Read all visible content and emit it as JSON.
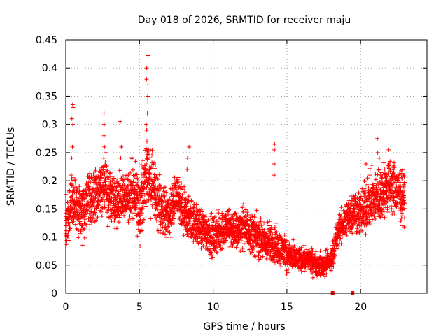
{
  "chart_data": {
    "type": "scatter",
    "title": "Day 018 of 2026, SRMTID for receiver maju",
    "xlabel": "GPS time / hours",
    "ylabel": "SRMTID / TECUs",
    "xlim": [
      0,
      24.5
    ],
    "ylim": [
      0,
      0.45
    ],
    "grid": true,
    "marker": "plus",
    "color": "#ff0000",
    "x_ticks": [
      0,
      5,
      10,
      15,
      20
    ],
    "x_tick_labels": [
      "0",
      "5",
      "10",
      "15",
      "20"
    ],
    "y_ticks": [
      0,
      0.05,
      0.1,
      0.15,
      0.2,
      0.25,
      0.3,
      0.35,
      0.4,
      0.45
    ],
    "y_tick_labels": [
      "0",
      "0.05",
      "0.1",
      "0.15",
      "0.2",
      "0.25",
      "0.3",
      "0.35",
      "0.4",
      "0.45"
    ],
    "zero_markers_x": [
      18.1,
      19.45
    ],
    "trend": {
      "x": [
        0,
        0.5,
        1,
        1.5,
        2,
        2.5,
        3,
        3.5,
        4,
        4.5,
        5,
        5.5,
        6,
        6.5,
        7,
        7.5,
        8,
        8.5,
        9,
        9.5,
        10,
        10.5,
        11,
        11.5,
        12,
        12.5,
        13,
        13.5,
        14,
        14.5,
        15,
        15.5,
        16,
        16.5,
        17,
        17.5,
        18,
        18.5,
        19,
        19.5,
        20,
        20.5,
        21,
        21.5,
        22,
        22.5,
        23
      ],
      "y": [
        0.12,
        0.17,
        0.14,
        0.16,
        0.17,
        0.19,
        0.17,
        0.16,
        0.17,
        0.18,
        0.15,
        0.22,
        0.18,
        0.15,
        0.14,
        0.17,
        0.14,
        0.13,
        0.12,
        0.11,
        0.1,
        0.11,
        0.12,
        0.11,
        0.12,
        0.11,
        0.1,
        0.09,
        0.09,
        0.08,
        0.07,
        0.06,
        0.06,
        0.06,
        0.05,
        0.05,
        0.06,
        0.11,
        0.13,
        0.15,
        0.14,
        0.16,
        0.17,
        0.18,
        0.19,
        0.18,
        0.17
      ]
    },
    "spread": {
      "x": [
        0,
        1,
        2,
        3,
        4,
        5,
        6,
        7,
        8,
        9,
        10,
        11,
        12,
        13,
        14,
        15,
        16,
        17,
        18,
        19,
        20,
        21,
        22,
        23
      ],
      "y": [
        0.07,
        0.07,
        0.07,
        0.07,
        0.06,
        0.08,
        0.08,
        0.06,
        0.06,
        0.05,
        0.05,
        0.05,
        0.05,
        0.05,
        0.05,
        0.04,
        0.03,
        0.03,
        0.03,
        0.05,
        0.06,
        0.07,
        0.07,
        0.06
      ]
    },
    "spikes": [
      {
        "x": 0.45,
        "values": [
          0.3,
          0.31,
          0.33,
          0.335,
          0.26,
          0.24,
          0.21
        ]
      },
      {
        "x": 2.65,
        "values": [
          0.32,
          0.3,
          0.28,
          0.26,
          0.25,
          0.24
        ]
      },
      {
        "x": 3.7,
        "values": [
          0.305,
          0.26,
          0.24
        ]
      },
      {
        "x": 5.5,
        "values": [
          0.422,
          0.4,
          0.38,
          0.37,
          0.35,
          0.34,
          0.32,
          0.3,
          0.29,
          0.27
        ]
      },
      {
        "x": 8.3,
        "values": [
          0.26,
          0.24,
          0.22
        ]
      },
      {
        "x": 14.2,
        "values": [
          0.265,
          0.255,
          0.23,
          0.21
        ]
      },
      {
        "x": 20.3,
        "values": [
          0.23,
          0.2
        ]
      },
      {
        "x": 21.2,
        "values": [
          0.275,
          0.25,
          0.24
        ]
      },
      {
        "x": 21.9,
        "values": [
          0.255,
          0.23
        ]
      }
    ]
  }
}
